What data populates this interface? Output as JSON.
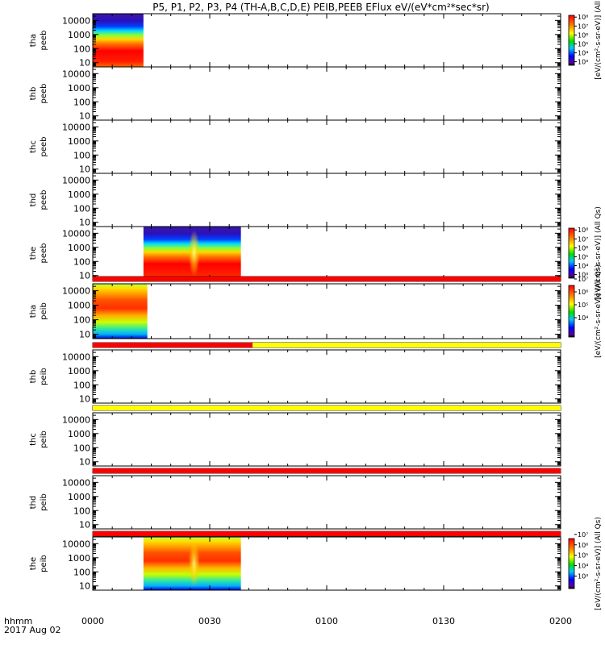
{
  "chart_data": {
    "type": "heatmap",
    "title": "P5, P1, P2, P3, P4 (TH-A,B,C,D,E) PEIB,PEEB EFlux eV/(eV*cm²*sec*sr)",
    "x_axis": {
      "ticks": [
        "0000",
        "0030",
        "0100",
        "0130",
        "0200"
      ],
      "tick_minutes": [
        0,
        30,
        60,
        90,
        120
      ],
      "range_minutes": [
        0,
        120
      ],
      "label": "hhmm",
      "date": "2017 Aug 02"
    },
    "y_axis": {
      "scale": "log",
      "range": [
        5,
        30000
      ],
      "ticks": [
        "10",
        "100",
        "1000",
        "10000"
      ],
      "tick_values": [
        10,
        100,
        1000,
        10000
      ]
    },
    "panels": [
      {
        "line1": "tha",
        "line2": "peeb",
        "data_minutes": [
          0,
          13
        ],
        "colorbar": {
          "label": "[eV/(cm²-s-sr-eV)] (All",
          "ticks": [
            "10⁸",
            "10⁷",
            "10⁶",
            "10⁵",
            "10⁴",
            "10³"
          ],
          "range_exp": [
            2.6,
            8.2
          ]
        }
      },
      {
        "line1": "thb",
        "line2": "peeb",
        "data_minutes": null
      },
      {
        "line1": "thc",
        "line2": "peeb",
        "data_minutes": null
      },
      {
        "line1": "thd",
        "line2": "peeb",
        "data_minutes": null
      },
      {
        "line1": "the",
        "line2": "peeb",
        "data_minutes": [
          13,
          38
        ],
        "colorbar": {
          "label": "[eV/(cm²-s-sr-eV)] (All Qs)",
          "ticks": [
            "10⁸",
            "10⁷",
            "10⁶",
            "10⁵",
            "10⁴",
            "10³"
          ],
          "range_exp": [
            2.6,
            8.2
          ]
        }
      },
      {
        "line1": "tha",
        "line2": "peib",
        "data_minutes": [
          0,
          14
        ],
        "colorbar": {
          "label": "[eV/(cm²-s-sr-eV)] (All Qs)",
          "ticks": [
            "10⁷",
            "10⁶",
            "10⁵",
            "10⁴"
          ],
          "range_exp": [
            3.5,
            7.5
          ]
        }
      },
      {
        "line1": "thb",
        "line2": "peib",
        "data_minutes": null
      },
      {
        "line1": "thc",
        "line2": "peib",
        "data_minutes": null
      },
      {
        "line1": "thd",
        "line2": "peib",
        "data_minutes": null
      },
      {
        "line1": "the",
        "line2": "peib",
        "data_minutes": [
          13,
          38
        ],
        "colorbar": {
          "label": "[eV/(cm²-s-sr-eV)] (All Qs)",
          "ticks": [
            "10⁷",
            "10⁶",
            "10⁵",
            "10⁴",
            "10³"
          ],
          "range_exp": [
            2.8,
            7.6
          ]
        }
      }
    ],
    "status_bars": [
      {
        "after_panel": 5,
        "segments": [
          {
            "start_min": 0,
            "end_min": 120,
            "color": "#ff0000"
          }
        ]
      },
      {
        "after_panel": 6,
        "segments": [
          {
            "start_min": 0,
            "end_min": 41,
            "color": "#ff0000"
          },
          {
            "start_min": 41,
            "end_min": 120,
            "color": "#ffff00"
          }
        ]
      },
      {
        "after_panel": 7,
        "segments": [
          {
            "start_min": 0,
            "end_min": 120,
            "color": "#ffff00"
          }
        ]
      },
      {
        "after_panel": 8,
        "segments": [
          {
            "start_min": 0,
            "end_min": 120,
            "color": "#ff0000"
          }
        ]
      },
      {
        "after_panel": 9,
        "segments": [
          {
            "start_min": 0,
            "end_min": 120,
            "color": "#ff0000"
          }
        ]
      }
    ]
  }
}
